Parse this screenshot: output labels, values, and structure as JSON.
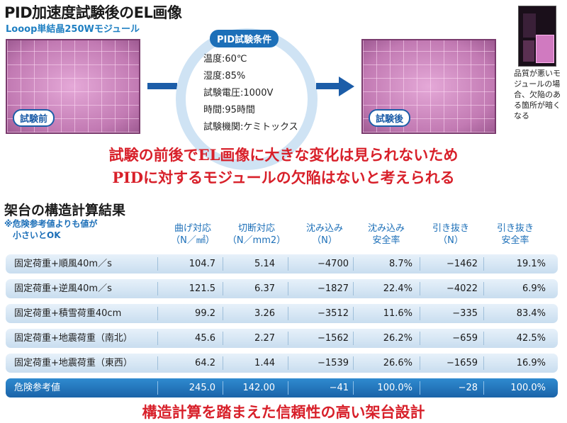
{
  "top": {
    "title": "PID加速度試験後のEL画像",
    "subtitle": "Looop単結晶250Wモジュール",
    "before_label": "試験前",
    "after_label": "試験後",
    "conditions_badge": "PID試験条件",
    "conditions": [
      "温度:60℃",
      "湿度:85%",
      "試験電圧:1000V",
      "時間:95時間",
      "試験機関:ケミトックス"
    ],
    "defect_note": "品質が悪いモジュールの場合、欠陥のある箇所が暗くなる",
    "conclusion_line1": "試験の前後でEL画像に大きな変化は見られないため",
    "conclusion_line2": "PIDに対するモジュールの欠陥はないと考えられる"
  },
  "table": {
    "title": "架台の構造計算結果",
    "note_line1": "※危険参考値よりも値が",
    "note_line2": "　小さいとOK",
    "headers": [
      {
        "line1": "曲げ対応",
        "line2": "（N／㎟）"
      },
      {
        "line1": "切断対応",
        "line2": "（N／mm2）"
      },
      {
        "line1": "沈み込み",
        "line2": "（N）"
      },
      {
        "line1": "沈み込み",
        "line2": "安全率"
      },
      {
        "line1": "引き抜き",
        "line2": "（N）"
      },
      {
        "line1": "引き抜き",
        "line2": "安全率"
      }
    ],
    "rows": [
      {
        "label": "固定荷重+順風40m／s",
        "values": [
          "104.7",
          "5.14",
          "−4700",
          "8.7%",
          "−1462",
          "19.1%"
        ]
      },
      {
        "label": "固定荷重+逆風40m／s",
        "values": [
          "121.5",
          "6.37",
          "−1827",
          "22.4%",
          "−4022",
          "6.9%"
        ]
      },
      {
        "label": "固定荷重+積雪荷重40cm",
        "values": [
          "99.2",
          "3.26",
          "−3512",
          "11.6%",
          "−335",
          "83.4%"
        ]
      },
      {
        "label": "固定荷重+地震荷重（南北）",
        "values": [
          "45.6",
          "2.27",
          "−1562",
          "26.2%",
          "−659",
          "42.5%"
        ]
      },
      {
        "label": "固定荷重+地震荷重（東西）",
        "values": [
          "64.2",
          "1.44",
          "−1539",
          "26.6%",
          "−1659",
          "16.9%"
        ]
      }
    ],
    "danger_row": {
      "label": "危険参考値",
      "values": [
        "245.0",
        "142.00",
        "−41",
        "100.0%",
        "−28",
        "100.0%"
      ]
    }
  },
  "footer": "構造計算を踏まえた信頼性の高い架台設計",
  "colors": {
    "accent_blue": "#1c6fb8",
    "highlight_red": "#d8202a",
    "el_pink": "#c878b8"
  }
}
